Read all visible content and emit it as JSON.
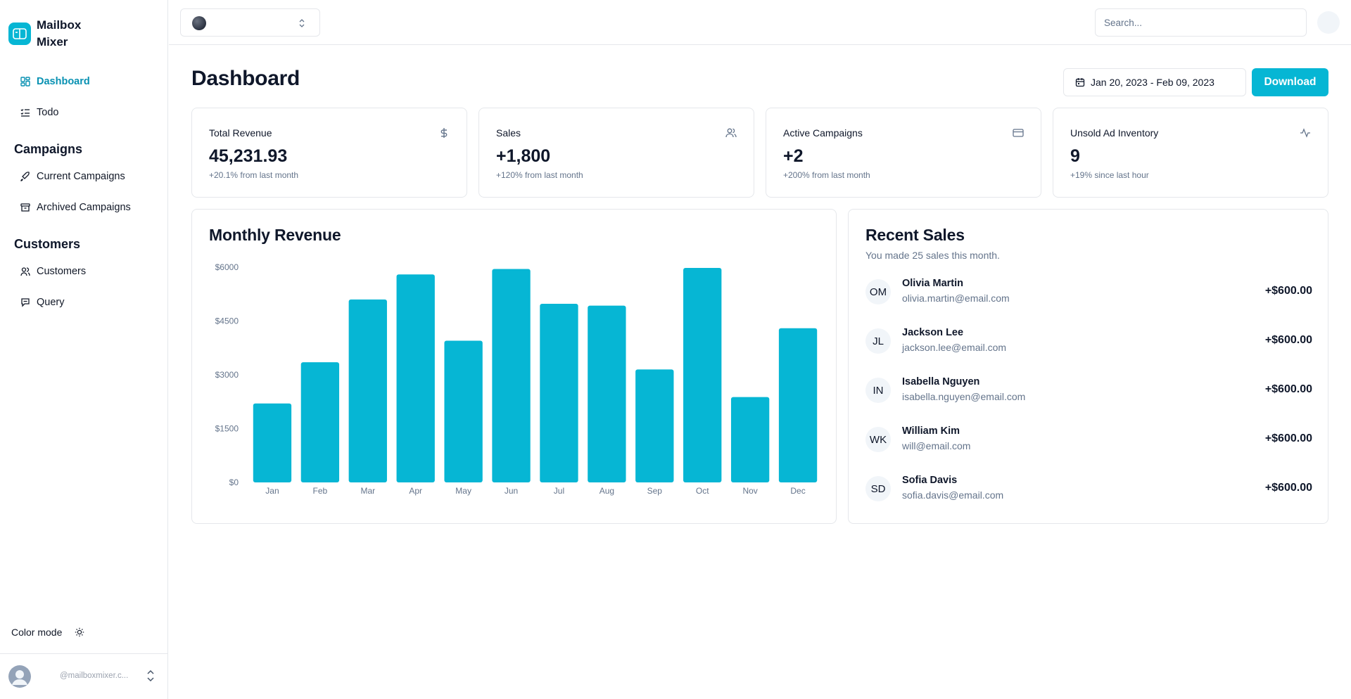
{
  "brand": {
    "name": "Mailbox Mixer"
  },
  "sidebar": {
    "nav": [
      {
        "label": "Dashboard",
        "icon": "dashboard-icon",
        "active": true
      },
      {
        "label": "Todo",
        "icon": "list-todo-icon",
        "active": false
      }
    ],
    "campaigns_heading": "Campaigns",
    "campaigns": [
      {
        "label": "Current Campaigns",
        "icon": "rocket-icon"
      },
      {
        "label": "Archived Campaigns",
        "icon": "archive-icon"
      }
    ],
    "customers_heading": "Customers",
    "customers": [
      {
        "label": "Customers",
        "icon": "users-icon"
      },
      {
        "label": "Query",
        "icon": "message-query-icon"
      }
    ],
    "color_mode_label": "Color mode",
    "user_email": "@mailboxmixer.c..."
  },
  "topbar": {
    "search_placeholder": "Search..."
  },
  "page": {
    "title": "Dashboard",
    "date_range": "Jan 20, 2023 - Feb 09, 2023",
    "download_label": "Download"
  },
  "stats": [
    {
      "title": "Total Revenue",
      "value": "45,231.93",
      "sub": "+20.1% from last month",
      "icon": "dollar-icon"
    },
    {
      "title": "Sales",
      "value": "+1,800",
      "sub": "+120% from last month",
      "icon": "users-icon"
    },
    {
      "title": "Active Campaigns",
      "value": "+2",
      "sub": "+200% from last month",
      "icon": "credit-card-icon"
    },
    {
      "title": "Unsold Ad Inventory",
      "value": "9",
      "sub": "+19% since last hour",
      "icon": "activity-icon"
    }
  ],
  "chart_data": {
    "type": "bar",
    "title": "Monthly Revenue",
    "categories": [
      "Jan",
      "Feb",
      "Mar",
      "Apr",
      "May",
      "Jun",
      "Jul",
      "Aug",
      "Sep",
      "Oct",
      "Nov",
      "Dec"
    ],
    "values": [
      2200,
      3350,
      5100,
      5800,
      3950,
      5950,
      4980,
      4930,
      3150,
      5980,
      2380,
      4300
    ],
    "yticks": [
      "$0",
      "$1500",
      "$3000",
      "$4500",
      "$6000"
    ],
    "ylim": [
      0,
      6000
    ],
    "color": "#06b6d4"
  },
  "recent_sales": {
    "title": "Recent Sales",
    "subtitle": "You made 25 sales this month.",
    "items": [
      {
        "initials": "OM",
        "name": "Olivia Martin",
        "email": "olivia.martin@email.com",
        "amount": "+$600.00"
      },
      {
        "initials": "JL",
        "name": "Jackson Lee",
        "email": "jackson.lee@email.com",
        "amount": "+$600.00"
      },
      {
        "initials": "IN",
        "name": "Isabella Nguyen",
        "email": "isabella.nguyen@email.com",
        "amount": "+$600.00"
      },
      {
        "initials": "WK",
        "name": "William Kim",
        "email": "will@email.com",
        "amount": "+$600.00"
      },
      {
        "initials": "SD",
        "name": "Sofia Davis",
        "email": "sofia.davis@email.com",
        "amount": "+$600.00"
      }
    ]
  },
  "colors": {
    "accent": "#06b6d4",
    "accent_text": "#0891b2",
    "muted": "#64748b",
    "border": "#e5e7eb"
  }
}
